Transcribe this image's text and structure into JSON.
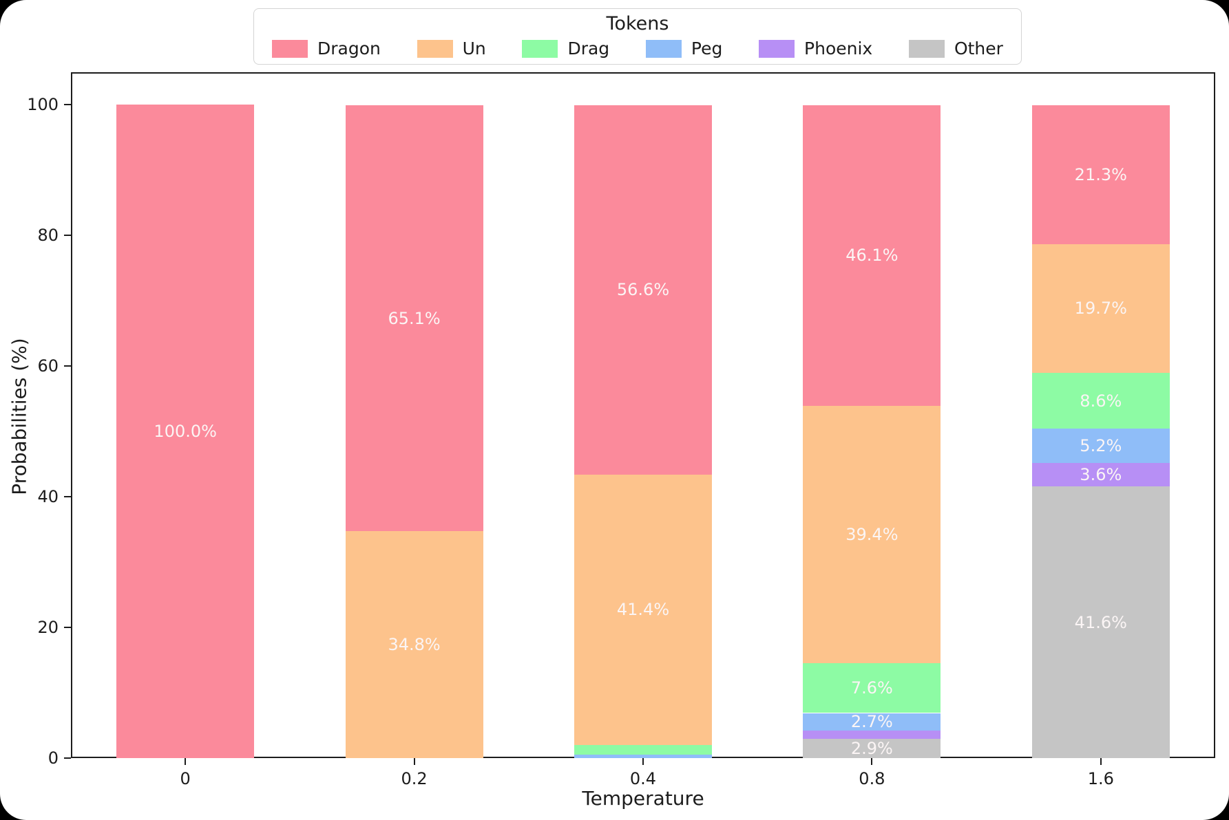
{
  "figure": {
    "background_color": "#ffffff",
    "frame_color": "#000000",
    "spine_color": "#1c1c1c"
  },
  "legend": {
    "title": "Tokens",
    "entries": [
      {
        "label": "Dragon",
        "color": "#fb8a9b"
      },
      {
        "label": "Un",
        "color": "#fdc38c"
      },
      {
        "label": "Drag",
        "color": "#8dfba4"
      },
      {
        "label": "Peg",
        "color": "#8fbdf8"
      },
      {
        "label": "Phoenix",
        "color": "#b78ff5"
      },
      {
        "label": "Other",
        "color": "#c5c5c5"
      }
    ]
  },
  "chart_data": {
    "type": "bar",
    "stacked": true,
    "xlabel": "Temperature",
    "ylabel": "Probabilities (%)",
    "ylim": [
      0,
      105
    ],
    "yticks": [
      "0",
      "20",
      "40",
      "60",
      "80",
      "100"
    ],
    "ytick_values": [
      0,
      20,
      40,
      60,
      80,
      100
    ],
    "categories": [
      "0",
      "0.2",
      "0.4",
      "0.8",
      "1.6"
    ],
    "grid": false,
    "legend_position": "top-center",
    "legend_title": "Tokens",
    "bar_label_color": "#fbf5f5",
    "stack_order_top_to_bottom": [
      "Dragon",
      "Un",
      "Drag",
      "Peg",
      "Phoenix",
      "Other"
    ],
    "series": [
      {
        "name": "Dragon",
        "color": "#fb8a9b",
        "values": [
          100.0,
          65.1,
          56.6,
          46.1,
          21.3
        ],
        "labels": [
          "100.0%",
          "65.1%",
          "56.6%",
          "46.1%",
          "21.3%"
        ]
      },
      {
        "name": "Un",
        "color": "#fdc38c",
        "values": [
          0,
          34.8,
          41.4,
          39.4,
          19.7
        ],
        "labels": [
          null,
          "34.8%",
          "41.4%",
          "39.4%",
          "19.7%"
        ]
      },
      {
        "name": "Drag",
        "color": "#8dfba4",
        "values": [
          0,
          0,
          1.5,
          7.6,
          8.6
        ],
        "labels": [
          null,
          null,
          null,
          "7.6%",
          "8.6%"
        ]
      },
      {
        "name": "Peg",
        "color": "#8fbdf8",
        "values": [
          0,
          0,
          0.5,
          2.7,
          5.2
        ],
        "labels": [
          null,
          null,
          null,
          "2.7%",
          "5.2%"
        ]
      },
      {
        "name": "Phoenix",
        "color": "#b78ff5",
        "values": [
          0,
          0,
          0,
          1.3,
          3.6
        ],
        "labels": [
          null,
          null,
          null,
          null,
          "3.6%"
        ]
      },
      {
        "name": "Other",
        "color": "#c5c5c5",
        "values": [
          0,
          0,
          0,
          2.9,
          41.6
        ],
        "labels": [
          null,
          null,
          null,
          "2.9%",
          "41.6%"
        ]
      }
    ]
  }
}
